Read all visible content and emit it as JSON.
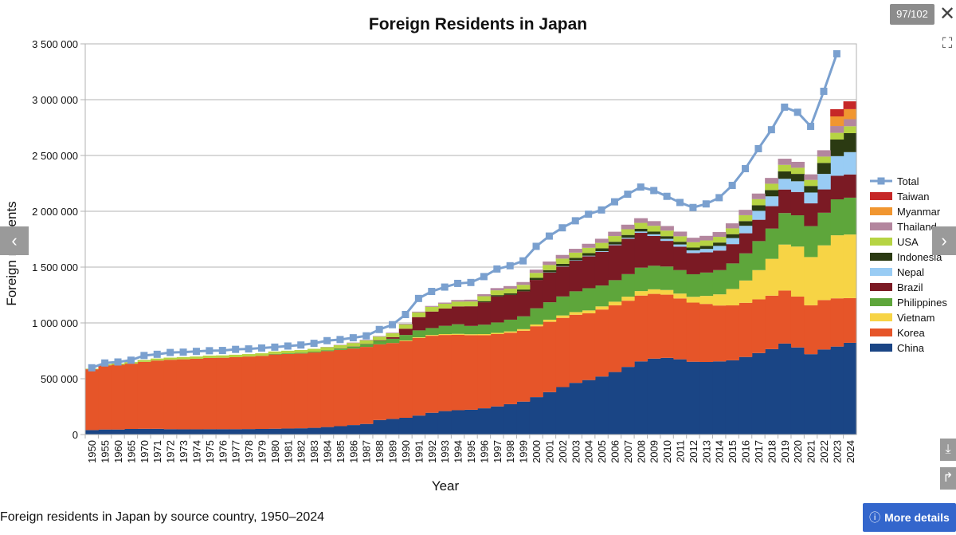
{
  "viewer": {
    "counter": "97/102",
    "caption": "Foreign residents in Japan by source country, 1950–2024",
    "more_details": "More details",
    "close_icon": "close-icon",
    "fullscreen_icon": "fullscreen-icon",
    "prev_icon": "chevron-left-icon",
    "next_icon": "chevron-right-icon",
    "download_icon": "download-icon",
    "share_icon": "share-icon"
  },
  "chart_data": {
    "type": "area",
    "title": "Foreign Residents in Japan",
    "xlabel": "Year",
    "ylabel": "Foreign residents",
    "ylim": [
      0,
      3500000
    ],
    "yticks": [
      0,
      500000,
      1000000,
      1500000,
      2000000,
      2500000,
      3000000,
      3500000
    ],
    "ytick_labels": [
      "0",
      "500 000",
      "1 000 000",
      "1 500 000",
      "2 000 000",
      "2 500 000",
      "3 000 000",
      "3 500 000"
    ],
    "grid": true,
    "legend_position": "right",
    "categories": [
      "1950",
      "1955",
      "1960",
      "1965",
      "1970",
      "1971",
      "1972",
      "1973",
      "1974",
      "1975",
      "1976",
      "1977",
      "1978",
      "1979",
      "1980",
      "1981",
      "1982",
      "1983",
      "1984",
      "1985",
      "1986",
      "1987",
      "1988",
      "1989",
      "1990",
      "1991",
      "1992",
      "1993",
      "1994",
      "1995",
      "1996",
      "1997",
      "1998",
      "1999",
      "2000",
      "2001",
      "2002",
      "2003",
      "2004",
      "2005",
      "2006",
      "2007",
      "2008",
      "2009",
      "2010",
      "2011",
      "2012",
      "2013",
      "2014",
      "2015",
      "2016",
      "2017",
      "2018",
      "2019",
      "2020",
      "2021",
      "2022",
      "2023",
      "2024"
    ],
    "series": [
      {
        "name": "China",
        "color": "#1a4585",
        "values": [
          40000,
          45000,
          45000,
          50000,
          51000,
          51000,
          48000,
          47000,
          47000,
          48000,
          48000,
          48000,
          49000,
          50000,
          52000,
          54000,
          56000,
          60000,
          67000,
          75000,
          85000,
          95000,
          130000,
          140000,
          150000,
          170000,
          195000,
          210000,
          218000,
          222000,
          235000,
          252000,
          272000,
          295000,
          335000,
          380000,
          425000,
          463000,
          488000,
          520000,
          560000,
          606000,
          655000,
          680000,
          687000,
          674000,
          652000,
          650000,
          655000,
          665000,
          695000,
          730000,
          765000,
          815000,
          780000,
          720000,
          762000,
          788000,
          822000
        ]
      },
      {
        "name": "Korea",
        "color": "#e65529",
        "values": [
          545000,
          575000,
          580000,
          585000,
          600000,
          612000,
          622000,
          627000,
          632000,
          638000,
          640000,
          645000,
          650000,
          655000,
          665000,
          668000,
          670000,
          675000,
          680000,
          683000,
          685000,
          690000,
          678000,
          680000,
          688000,
          695000,
          690000,
          682000,
          675000,
          668000,
          655000,
          648000,
          640000,
          635000,
          635000,
          630000,
          620000,
          610000,
          598000,
          600000,
          598000,
          593000,
          590000,
          580000,
          566000,
          545000,
          530000,
          520000,
          501000,
          492000,
          485000,
          481000,
          479000,
          475000,
          456000,
          438000,
          443000,
          432000,
          400000
        ]
      },
      {
        "name": "Vietnam",
        "color": "#f7d445",
        "values": [
          0,
          0,
          0,
          0,
          0,
          0,
          0,
          0,
          0,
          0,
          0,
          0,
          0,
          0,
          0,
          0,
          0,
          0,
          0,
          0,
          0,
          0,
          0,
          0,
          5000,
          6000,
          7000,
          8000,
          9000,
          9000,
          10000,
          11000,
          12000,
          14000,
          16000,
          19000,
          22000,
          24000,
          26000,
          28000,
          32000,
          36000,
          40000,
          41000,
          42000,
          44000,
          52000,
          72000,
          100000,
          147000,
          200000,
          262000,
          330000,
          412000,
          448000,
          432000,
          490000,
          565000,
          570000
        ]
      },
      {
        "name": "Philippines",
        "color": "#5ea63b",
        "values": [
          0,
          0,
          0,
          0,
          0,
          0,
          0,
          0,
          0,
          0,
          0,
          0,
          0,
          0,
          5000,
          6000,
          7000,
          8000,
          9000,
          12000,
          18000,
          25000,
          32000,
          38000,
          49000,
          62000,
          62000,
          74000,
          86000,
          74000,
          84000,
          93000,
          105000,
          115000,
          145000,
          156000,
          170000,
          186000,
          199000,
          187000,
          193000,
          202000,
          210000,
          211000,
          210000,
          210000,
          202000,
          209000,
          217000,
          229000,
          243000,
          260000,
          271000,
          282000,
          280000,
          277000,
          292000,
          322000,
          330000
        ]
      },
      {
        "name": "Brazil",
        "color": "#7b1a24",
        "values": [
          0,
          0,
          0,
          0,
          0,
          0,
          0,
          0,
          0,
          0,
          0,
          0,
          0,
          0,
          0,
          0,
          0,
          0,
          0,
          2000,
          2000,
          3000,
          5000,
          15000,
          56000,
          119000,
          148000,
          155000,
          160000,
          176000,
          201000,
          233000,
          222000,
          224000,
          254000,
          266000,
          268000,
          274000,
          286000,
          302000,
          313000,
          317000,
          312000,
          267000,
          230000,
          210000,
          190000,
          181000,
          175000,
          173000,
          180000,
          191000,
          201000,
          211000,
          209000,
          204000,
          209000,
          211000,
          208000
        ]
      },
      {
        "name": "Nepal",
        "color": "#99ccf4",
        "values": [
          0,
          0,
          0,
          0,
          0,
          0,
          0,
          0,
          0,
          0,
          0,
          0,
          0,
          0,
          0,
          0,
          0,
          0,
          0,
          0,
          0,
          0,
          0,
          0,
          0,
          0,
          0,
          0,
          0,
          0,
          0,
          0,
          0,
          0,
          0,
          2000,
          3000,
          4000,
          5000,
          6000,
          7000,
          9000,
          12000,
          15000,
          18000,
          20000,
          24000,
          31000,
          42000,
          54000,
          67000,
          80000,
          88000,
          96000,
          96000,
          97000,
          139000,
          176000,
          200000
        ]
      },
      {
        "name": "Indonesia",
        "color": "#2b3a12",
        "values": [
          0,
          0,
          0,
          0,
          0,
          0,
          0,
          0,
          0,
          0,
          0,
          0,
          0,
          0,
          0,
          0,
          0,
          0,
          0,
          0,
          0,
          0,
          0,
          0,
          0,
          0,
          0,
          0,
          0,
          0,
          10000,
          12000,
          14000,
          16000,
          19000,
          20000,
          21000,
          22000,
          23000,
          25000,
          24000,
          25000,
          25000,
          24000,
          24000,
          24000,
          25000,
          27000,
          30000,
          35000,
          42000,
          50000,
          56000,
          66000,
          66000,
          59000,
          98000,
          149000,
          170000
        ]
      },
      {
        "name": "USA",
        "color": "#b6d443",
        "values": [
          5000,
          10000,
          12000,
          14000,
          17000,
          18000,
          19000,
          20000,
          20000,
          21000,
          21000,
          22000,
          22000,
          23000,
          22000,
          23000,
          24000,
          25000,
          27000,
          29000,
          30000,
          30000,
          32000,
          34000,
          38000,
          42000,
          42000,
          43000,
          43000,
          43000,
          44000,
          43000,
          42000,
          42000,
          44000,
          46000,
          47000,
          47000,
          48000,
          49000,
          51000,
          51000,
          52000,
          52000,
          50000,
          49000,
          48000,
          49000,
          51000,
          52000,
          53000,
          55000,
          57000,
          59000,
          55000,
          54000,
          57000,
          60000,
          62000
        ]
      },
      {
        "name": "Thailand",
        "color": "#b3869e",
        "values": [
          0,
          0,
          0,
          0,
          0,
          0,
          0,
          0,
          0,
          0,
          0,
          0,
          0,
          0,
          0,
          0,
          0,
          0,
          2000,
          3000,
          4000,
          5000,
          5000,
          5000,
          6000,
          7000,
          8000,
          10000,
          14000,
          16000,
          18000,
          20000,
          23000,
          25000,
          29000,
          31000,
          33000,
          34000,
          36000,
          37000,
          39000,
          41000,
          42000,
          42000,
          41000,
          42000,
          40000,
          41000,
          43000,
          45000,
          48000,
          50000,
          52000,
          55000,
          53000,
          50000,
          57000,
          61000,
          63000
        ]
      },
      {
        "name": "Myanmar",
        "color": "#f19630",
        "values": [
          0,
          0,
          0,
          0,
          0,
          0,
          0,
          0,
          0,
          0,
          0,
          0,
          0,
          0,
          0,
          0,
          0,
          0,
          0,
          0,
          0,
          0,
          0,
          0,
          0,
          0,
          0,
          0,
          0,
          0,
          0,
          0,
          0,
          0,
          0,
          0,
          0,
          0,
          0,
          0,
          0,
          0,
          0,
          0,
          0,
          0,
          0,
          0,
          0,
          0,
          0,
          0,
          0,
          0,
          0,
          0,
          0,
          86000,
          90000
        ]
      },
      {
        "name": "Taiwan",
        "color": "#c62727",
        "values": [
          0,
          0,
          0,
          0,
          0,
          0,
          0,
          0,
          0,
          0,
          0,
          0,
          0,
          0,
          0,
          0,
          0,
          0,
          0,
          0,
          0,
          0,
          0,
          0,
          0,
          0,
          0,
          0,
          0,
          0,
          0,
          0,
          0,
          0,
          0,
          0,
          0,
          0,
          0,
          0,
          0,
          0,
          0,
          0,
          0,
          0,
          0,
          0,
          0,
          0,
          0,
          0,
          0,
          0,
          0,
          0,
          0,
          65000,
          70000
        ]
      }
    ],
    "total": {
      "name": "Total",
      "color": "#7aa0cf",
      "values": [
        598000,
        641000,
        650000,
        666000,
        708000,
        719000,
        735000,
        738000,
        745000,
        751000,
        753000,
        763000,
        767000,
        775000,
        783000,
        793000,
        802000,
        817000,
        841000,
        851000,
        867000,
        884000,
        941000,
        984000,
        1075000,
        1219000,
        1282000,
        1321000,
        1354000,
        1362000,
        1415000,
        1483000,
        1512000,
        1556000,
        1686000,
        1778000,
        1852000,
        1915000,
        1974000,
        2012000,
        2085000,
        2153000,
        2217000,
        2186000,
        2134000,
        2079000,
        2034000,
        2066000,
        2122000,
        2232000,
        2382000,
        2561000,
        2731000,
        2933000,
        2887000,
        2761000,
        3075000,
        3411000,
        null
      ]
    },
    "legend_order": [
      "Total",
      "Taiwan",
      "Myanmar",
      "Thailand",
      "USA",
      "Indonesia",
      "Nepal",
      "Brazil",
      "Philippines",
      "Vietnam",
      "Korea",
      "China"
    ]
  }
}
